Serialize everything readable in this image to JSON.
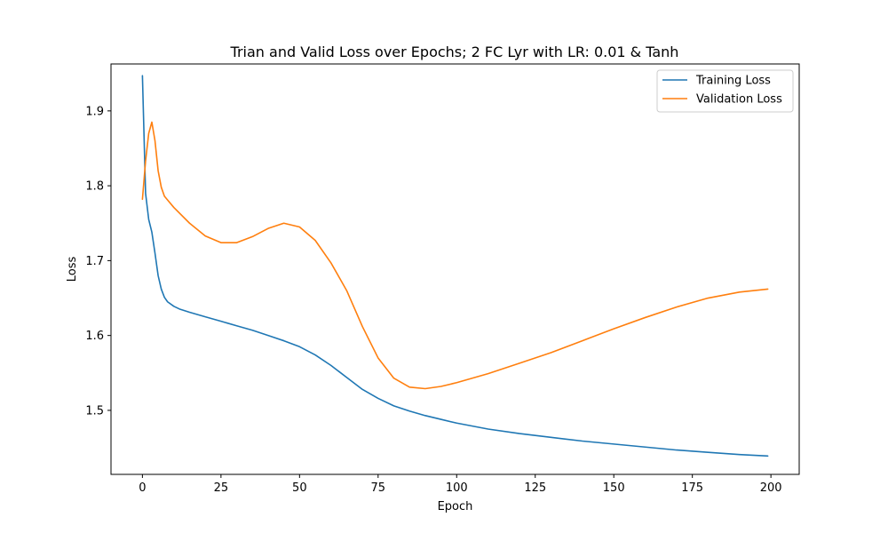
{
  "chart_data": {
    "type": "line",
    "title": "Trian and Valid Loss over Epochs; 2 FC Lyr with LR: 0.01 & Tanh",
    "xlabel": "Epoch",
    "ylabel": "Loss",
    "xlim": [
      -10,
      209
    ],
    "ylim": [
      1.4145,
      1.9627
    ],
    "xticks": [
      0,
      25,
      50,
      75,
      100,
      125,
      150,
      175,
      200
    ],
    "xtick_labels": [
      "0",
      "25",
      "50",
      "75",
      "100",
      "125",
      "150",
      "175",
      "200"
    ],
    "yticks": [
      1.5,
      1.6,
      1.7,
      1.8,
      1.9
    ],
    "ytick_labels": [
      "1.5",
      "1.6",
      "1.7",
      "1.8",
      "1.9"
    ],
    "grid": false,
    "legend_position": "upper right",
    "series": [
      {
        "name": "Training Loss",
        "color": "#1f77b4",
        "points": [
          [
            0,
            1.947
          ],
          [
            1,
            1.79
          ],
          [
            2,
            1.755
          ],
          [
            3,
            1.738
          ],
          [
            4,
            1.71
          ],
          [
            5,
            1.68
          ],
          [
            6,
            1.662
          ],
          [
            7,
            1.651
          ],
          [
            8,
            1.645
          ],
          [
            10,
            1.639
          ],
          [
            12,
            1.635
          ],
          [
            15,
            1.631
          ],
          [
            20,
            1.625
          ],
          [
            25,
            1.619
          ],
          [
            30,
            1.613
          ],
          [
            35,
            1.607
          ],
          [
            40,
            1.6
          ],
          [
            45,
            1.593
          ],
          [
            50,
            1.585
          ],
          [
            55,
            1.574
          ],
          [
            60,
            1.56
          ],
          [
            65,
            1.544
          ],
          [
            70,
            1.528
          ],
          [
            75,
            1.516
          ],
          [
            80,
            1.506
          ],
          [
            85,
            1.499
          ],
          [
            90,
            1.493
          ],
          [
            95,
            1.488
          ],
          [
            100,
            1.483
          ],
          [
            110,
            1.475
          ],
          [
            120,
            1.469
          ],
          [
            130,
            1.464
          ],
          [
            140,
            1.459
          ],
          [
            150,
            1.455
          ],
          [
            160,
            1.451
          ],
          [
            170,
            1.447
          ],
          [
            180,
            1.444
          ],
          [
            190,
            1.441
          ],
          [
            199,
            1.439
          ]
        ]
      },
      {
        "name": "Validation Loss",
        "color": "#ff7f0e",
        "points": [
          [
            0,
            1.782
          ],
          [
            1,
            1.833
          ],
          [
            2,
            1.87
          ],
          [
            3,
            1.885
          ],
          [
            4,
            1.86
          ],
          [
            5,
            1.82
          ],
          [
            6,
            1.798
          ],
          [
            7,
            1.786
          ],
          [
            8,
            1.781
          ],
          [
            10,
            1.771
          ],
          [
            15,
            1.75
          ],
          [
            20,
            1.733
          ],
          [
            25,
            1.724
          ],
          [
            30,
            1.724
          ],
          [
            35,
            1.732
          ],
          [
            40,
            1.743
          ],
          [
            45,
            1.75
          ],
          [
            50,
            1.745
          ],
          [
            55,
            1.727
          ],
          [
            60,
            1.697
          ],
          [
            65,
            1.66
          ],
          [
            70,
            1.612
          ],
          [
            75,
            1.57
          ],
          [
            80,
            1.543
          ],
          [
            85,
            1.531
          ],
          [
            90,
            1.529
          ],
          [
            95,
            1.532
          ],
          [
            100,
            1.537
          ],
          [
            110,
            1.549
          ],
          [
            120,
            1.563
          ],
          [
            130,
            1.577
          ],
          [
            140,
            1.593
          ],
          [
            150,
            1.609
          ],
          [
            160,
            1.624
          ],
          [
            170,
            1.638
          ],
          [
            180,
            1.65
          ],
          [
            190,
            1.658
          ],
          [
            199,
            1.662
          ]
        ]
      }
    ]
  }
}
